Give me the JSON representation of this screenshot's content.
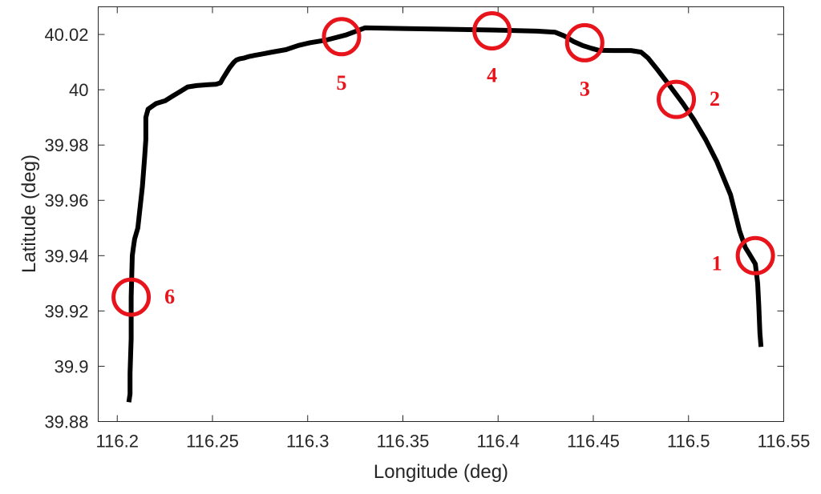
{
  "chart_data": {
    "type": "line",
    "xlabel": "Longitude (deg)",
    "ylabel": "Latitude (deg)",
    "xlim": [
      116.19,
      116.55
    ],
    "ylim": [
      39.88,
      40.03
    ],
    "xticks": [
      "116.2",
      "116.25",
      "116.3",
      "116.35",
      "116.4",
      "116.45",
      "116.5",
      "116.55"
    ],
    "yticks": [
      "39.88",
      "39.9",
      "39.92",
      "39.94",
      "39.96",
      "39.98",
      "40",
      "40.02"
    ],
    "grid": false,
    "series": [
      {
        "x": [
          116.2061,
          116.2067,
          116.2067,
          116.2073,
          116.2073,
          116.2079,
          116.2085,
          116.2091,
          116.2108,
          116.2132,
          116.2144,
          116.215,
          116.215,
          116.2162,
          116.2203,
          116.2251,
          116.2286,
          116.2334,
          116.237,
          116.2417,
          116.2471,
          116.2518,
          116.2542,
          116.2554,
          116.259,
          116.2613,
          116.2625,
          116.2643,
          116.2667,
          116.269,
          116.2726,
          116.2767,
          116.2803,
          116.2886,
          116.2951,
          116.3011,
          116.31,
          116.3201,
          116.3266,
          116.3302,
          116.3385,
          116.3528,
          116.373,
          116.3968,
          116.4205,
          116.43,
          116.4347,
          116.4395,
          116.4443,
          116.449,
          116.4526,
          116.4603,
          116.4698,
          116.4751,
          116.4787,
          116.484,
          116.4906,
          116.4971,
          116.503,
          116.509,
          116.5149,
          116.5221,
          116.5268,
          116.5298,
          116.5316,
          116.5351,
          116.5363,
          116.5369,
          116.5375,
          116.5381
        ],
        "y": [
          39.887,
          39.89,
          39.8975,
          39.91,
          39.925,
          39.94,
          39.943,
          39.946,
          39.95,
          39.965,
          39.976,
          39.982,
          39.99,
          39.993,
          39.995,
          39.996,
          39.9975,
          39.9995,
          40.001,
          40.0015,
          40.0018,
          40.002,
          40.0025,
          40.004,
          40.008,
          40.01,
          40.0107,
          40.0112,
          40.0115,
          40.012,
          40.0125,
          40.013,
          40.0135,
          40.0145,
          40.016,
          40.017,
          40.018,
          40.0198,
          40.0215,
          40.0224,
          40.0223,
          40.0221,
          40.0219,
          40.0216,
          40.0212,
          40.0208,
          40.0195,
          40.0175,
          40.016,
          40.015,
          40.0143,
          40.0142,
          40.0142,
          40.0136,
          40.0115,
          40.007,
          40.001,
          39.995,
          39.989,
          39.982,
          39.974,
          39.962,
          39.949,
          39.943,
          39.941,
          39.937,
          39.93,
          39.922,
          39.912,
          39.907
        ]
      }
    ],
    "markers": [
      {
        "label": "1",
        "x": 116.5351,
        "y": 39.94
      },
      {
        "label": "2",
        "x": 116.4936,
        "y": 39.9965
      },
      {
        "label": "3",
        "x": 116.4455,
        "y": 40.017
      },
      {
        "label": "4",
        "x": 116.3968,
        "y": 40.0213
      },
      {
        "label": "5",
        "x": 116.3178,
        "y": 40.0192
      },
      {
        "label": "6",
        "x": 116.2073,
        "y": 39.925
      }
    ],
    "colors": {
      "line": "#000000",
      "marker": "#e8141b",
      "axes": "#262626"
    }
  }
}
